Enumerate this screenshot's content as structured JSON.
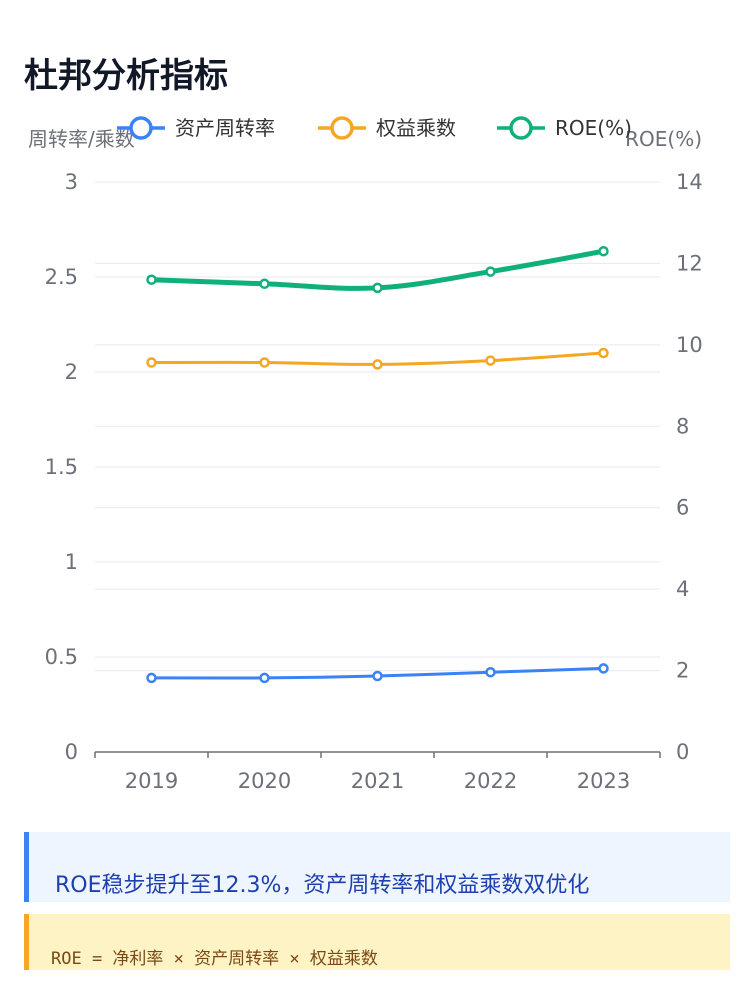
{
  "page": {
    "title": "杜邦分析指标"
  },
  "chart_data": {
    "type": "line",
    "categories": [
      "2019",
      "2020",
      "2021",
      "2022",
      "2023"
    ],
    "y_left": {
      "label": "周转率/乘数",
      "range": [
        0,
        3
      ],
      "ticks": [
        "0",
        "0.5",
        "1",
        "1.5",
        "2",
        "2.5",
        "3"
      ]
    },
    "y_right": {
      "label": "ROE(%)",
      "range": [
        0,
        14
      ],
      "ticks": [
        "0",
        "2",
        "4",
        "6",
        "8",
        "10",
        "12",
        "14"
      ]
    },
    "series": [
      {
        "name": "资产周转率",
        "axis": "left",
        "color": "#3b82f6",
        "values": [
          0.39,
          0.39,
          0.4,
          0.42,
          0.44
        ]
      },
      {
        "name": "权益乘数",
        "axis": "left",
        "color": "#f5a623",
        "values": [
          2.05,
          2.05,
          2.04,
          2.06,
          2.1
        ]
      },
      {
        "name": "ROE(%)",
        "axis": "right",
        "color": "#10b07a",
        "values": [
          11.6,
          11.5,
          11.4,
          11.8,
          12.3
        ]
      }
    ],
    "legend_position": "top",
    "grid": true
  },
  "note": {
    "text": "ROE稳步提升至12.3%，资产周转率和权益乘数双优化"
  },
  "formula": {
    "text": "ROE = 净利率 × 资产周转率 × 权益乘数"
  }
}
